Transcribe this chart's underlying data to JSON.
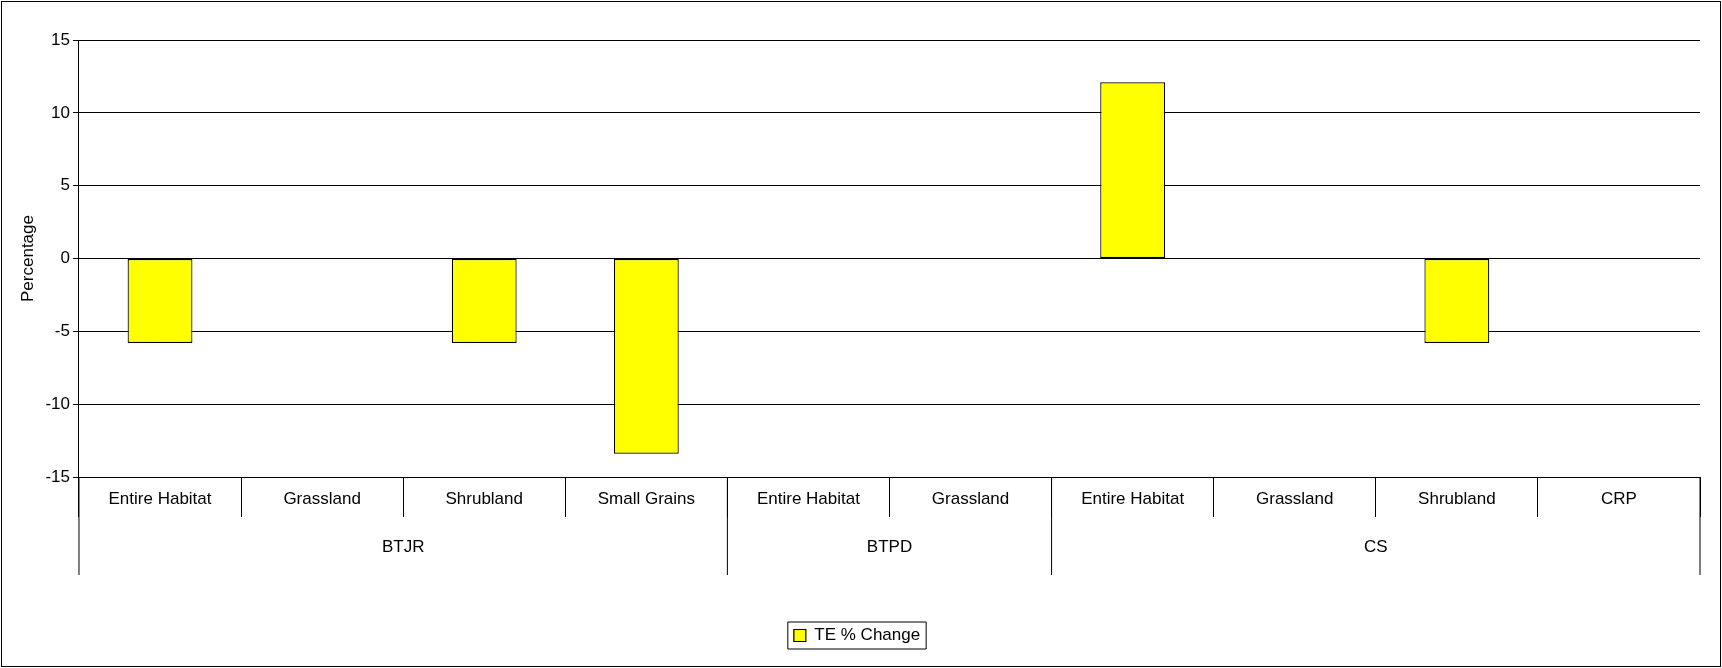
{
  "chart_data": {
    "type": "bar",
    "categories": [
      "Entire Habitat",
      "Grassland",
      "Shrubland",
      "Small Grains",
      "Entire Habitat",
      "Grassland",
      "Entire Habitat",
      "Grassland",
      "Shrubland",
      "CRP"
    ],
    "series": [
      {
        "name": "TE % Change",
        "color": "#ffff00",
        "values": [
          -5.8,
          0,
          -5.8,
          -13.4,
          0,
          0,
          12.1,
          0,
          -5.8,
          0
        ]
      }
    ],
    "ylabel": "Percentage",
    "ylim": [
      -15,
      15
    ],
    "yticks": [
      -15,
      -10,
      -5,
      0,
      5,
      10,
      15
    ],
    "annotations": [
      "BTJR",
      "BTPD",
      "CS"
    ],
    "grid": "y",
    "legend": "bottom"
  }
}
